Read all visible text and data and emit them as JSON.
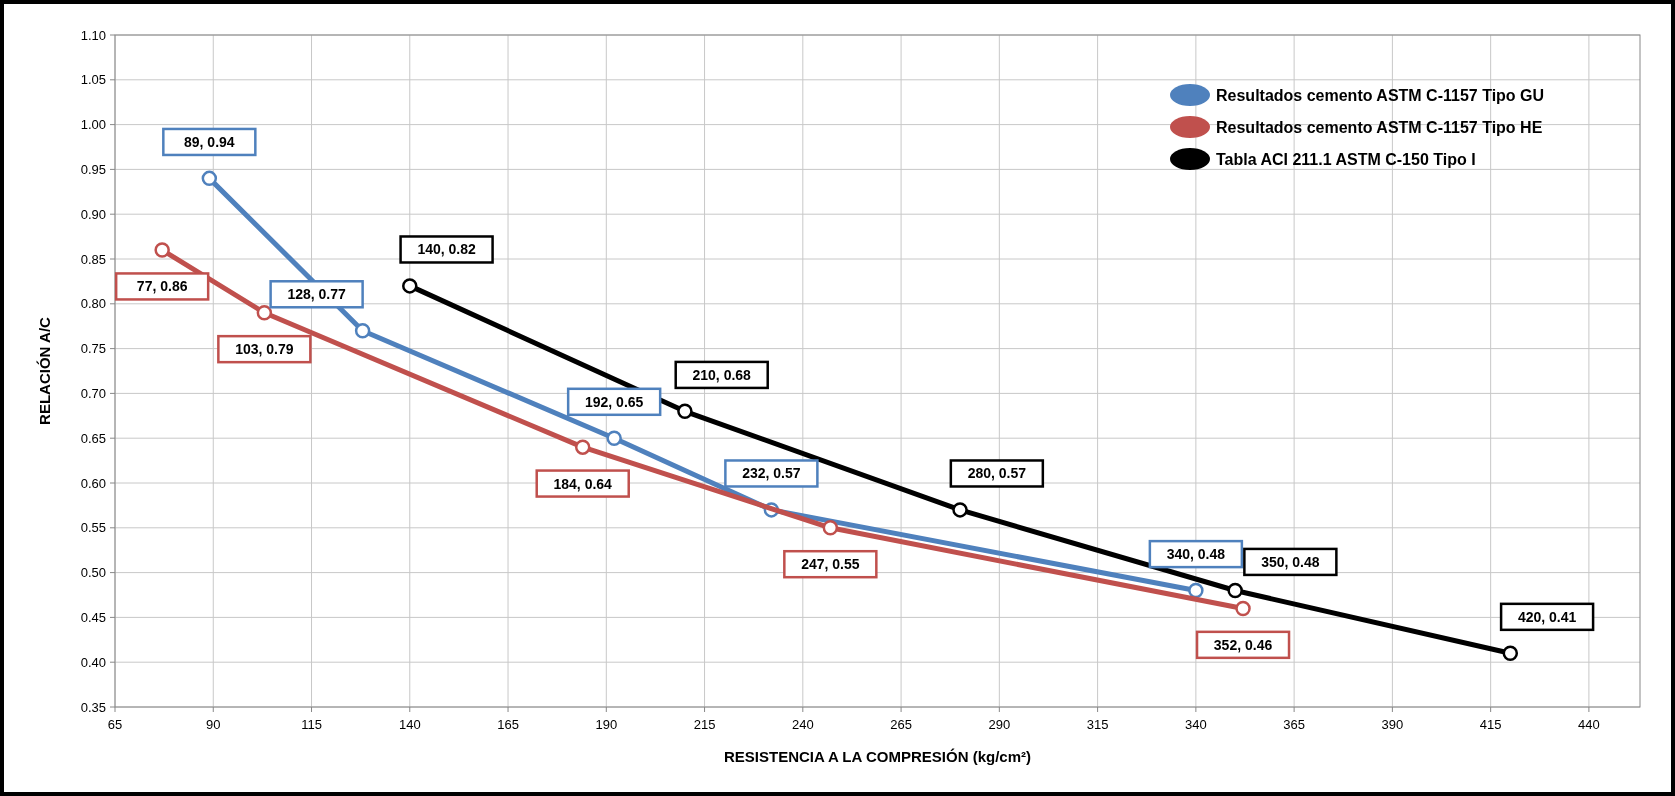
{
  "chart_data": {
    "type": "line",
    "xlabel": "RESISTENCIA A LA COMPRESIÓN (kg/cm²)",
    "ylabel": "RELACIÓN A/C",
    "xlim": [
      65,
      453
    ],
    "xticks": [
      65,
      90,
      115,
      140,
      165,
      190,
      215,
      240,
      265,
      290,
      315,
      340,
      365,
      390,
      415,
      440
    ],
    "ylim": [
      0.35,
      1.1
    ],
    "yticks": [
      {
        "value": 0.35,
        "label": "0.35"
      },
      {
        "value": 0.4,
        "label": "0.40"
      },
      {
        "value": 0.45,
        "label": "0.45"
      },
      {
        "value": 0.5,
        "label": "0.50"
      },
      {
        "value": 0.55,
        "label": "0.55"
      },
      {
        "value": 0.6,
        "label": "0.60"
      },
      {
        "value": 0.65,
        "label": "0.65"
      },
      {
        "value": 0.7,
        "label": "0.70"
      },
      {
        "value": 0.75,
        "label": "0.75"
      },
      {
        "value": 0.8,
        "label": "0.80"
      },
      {
        "value": 0.85,
        "label": "0.85"
      },
      {
        "value": 0.9,
        "label": "0.90"
      },
      {
        "value": 0.95,
        "label": "0.95"
      },
      {
        "value": 1.0,
        "label": "1.00"
      },
      {
        "value": 1.05,
        "label": "1.05"
      },
      {
        "value": 1.1,
        "label": "1.10"
      }
    ],
    "grid": true,
    "legend": "top right",
    "marker": "circle",
    "line_style": "solid",
    "series": [
      {
        "name": "Resultados cemento ASTM C-1157 Tipo GU",
        "color": "#4f81bd",
        "x": [
          89,
          128,
          192,
          232,
          340
        ],
        "values": [
          0.94,
          0.77,
          0.65,
          0.57,
          0.48
        ],
        "value_labels": [
          "89, 0.94",
          "128, 0.77",
          "192, 0.65",
          "232, 0.57",
          "340, 0.48"
        ]
      },
      {
        "name": "Resultados cemento ASTM C-1157 Tipo HE",
        "color": "#c0504d",
        "x": [
          77,
          103,
          184,
          247,
          352
        ],
        "values": [
          0.86,
          0.79,
          0.64,
          0.55,
          0.46
        ],
        "value_labels": [
          "77, 0.86",
          "103, 0.79",
          "184, 0.64",
          "247, 0.55",
          "352, 0.46"
        ]
      },
      {
        "name": "Tabla ACI 211.1 ASTM C-150 Tipo I",
        "color": "#000000",
        "x": [
          140,
          210,
          280,
          350,
          420
        ],
        "values": [
          0.82,
          0.68,
          0.57,
          0.48,
          0.41
        ],
        "value_labels": [
          "140, 0.82",
          "210, 0.68",
          "280, 0.57",
          "350, 0.48",
          "420, 0.41"
        ]
      }
    ]
  }
}
